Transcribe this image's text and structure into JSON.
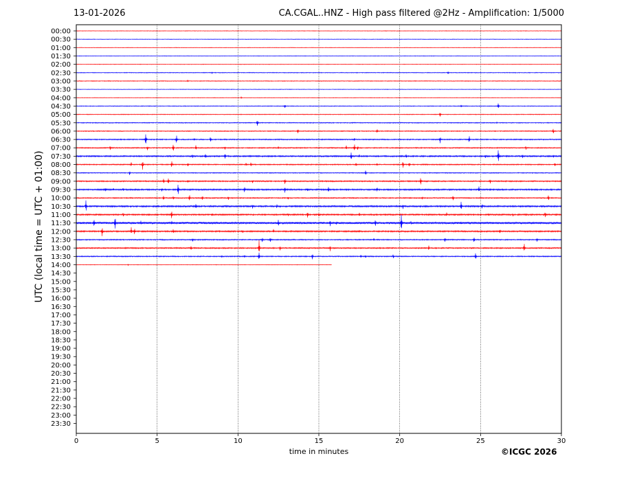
{
  "header": {
    "date": "13-01-2026",
    "title": "CA.CGAL..HNZ - High pass filtered @2Hz - Amplification: 1/5000"
  },
  "footer": {
    "copyright": "©ICGC 2026"
  },
  "colors": {
    "odd_trace": "#ff0000",
    "even_trace": "#0000ff",
    "axes": "#000000",
    "grid": "#000000"
  },
  "chart_data": {
    "type": "line",
    "title": "CA.CGAL..HNZ - High pass filtered @2Hz - Amplification: 1/5000",
    "xlabel": "time in minutes",
    "ylabel": "UTC (local time = UTC + 01:00)",
    "xlim": [
      0,
      30
    ],
    "xticks": [
      0,
      5,
      10,
      15,
      20,
      25,
      30
    ],
    "grid": "vertical dotted lines at 5, 10, 15, 20, 25",
    "row_labels": [
      "00:00",
      "00:30",
      "01:00",
      "01:30",
      "02:00",
      "02:30",
      "03:00",
      "03:30",
      "04:00",
      "04:30",
      "05:00",
      "05:30",
      "06:00",
      "06:30",
      "07:00",
      "07:30",
      "08:00",
      "08:30",
      "09:00",
      "09:30",
      "10:00",
      "10:30",
      "11:00",
      "11:30",
      "12:00",
      "12:30",
      "13:00",
      "13:30",
      "14:00",
      "14:30",
      "15:00",
      "15:30",
      "16:00",
      "16:30",
      "17:00",
      "17:30",
      "18:00",
      "18:30",
      "19:00",
      "19:30",
      "20:00",
      "20:30",
      "21:00",
      "21:30",
      "22:00",
      "22:30",
      "23:00",
      "23:30"
    ],
    "last_row_end_minute": 15.8,
    "series": [
      {
        "row": "00:00",
        "noise": 0.3,
        "events": []
      },
      {
        "row": "00:30",
        "noise": 0.3,
        "events": []
      },
      {
        "row": "01:00",
        "noise": 0.3,
        "events": []
      },
      {
        "row": "01:30",
        "noise": 0.3,
        "events": []
      },
      {
        "row": "02:00",
        "noise": 0.3,
        "events": []
      },
      {
        "row": "02:30",
        "noise": 0.4,
        "events": [
          [
            8.4,
            1.5
          ],
          [
            23.0,
            3
          ]
        ]
      },
      {
        "row": "03:00",
        "noise": 0.4,
        "events": [
          [
            6.9,
            2
          ]
        ]
      },
      {
        "row": "03:30",
        "noise": 0.3,
        "events": []
      },
      {
        "row": "04:00",
        "noise": 0.3,
        "events": [
          [
            10.2,
            1.5
          ]
        ]
      },
      {
        "row": "04:30",
        "noise": 0.4,
        "events": [
          [
            12.9,
            4
          ],
          [
            23.8,
            3
          ],
          [
            26.1,
            6
          ]
        ]
      },
      {
        "row": "05:00",
        "noise": 0.4,
        "events": [
          [
            22.5,
            5
          ]
        ]
      },
      {
        "row": "05:30",
        "noise": 0.5,
        "events": [
          [
            11.2,
            7
          ],
          [
            26.0,
            1.5
          ]
        ]
      },
      {
        "row": "06:00",
        "noise": 0.5,
        "events": [
          [
            13.7,
            5
          ],
          [
            18.6,
            4
          ],
          [
            29.5,
            5
          ]
        ]
      },
      {
        "row": "06:30",
        "noise": 0.6,
        "events": [
          [
            4.3,
            14
          ],
          [
            6.2,
            9
          ],
          [
            7.3,
            3
          ],
          [
            8.3,
            5
          ],
          [
            17.2,
            3
          ],
          [
            22.5,
            6
          ],
          [
            24.3,
            6
          ]
        ]
      },
      {
        "row": "07:00",
        "noise": 0.6,
        "events": [
          [
            2.1,
            4
          ],
          [
            4.4,
            4
          ],
          [
            6.0,
            8
          ],
          [
            7.4,
            5
          ],
          [
            9.2,
            4
          ],
          [
            12.5,
            3
          ],
          [
            16.7,
            4
          ],
          [
            17.2,
            7
          ],
          [
            17.4,
            5
          ],
          [
            27.8,
            4
          ]
        ]
      },
      {
        "row": "07:30",
        "noise": 0.8,
        "events": [
          [
            7.2,
            4
          ],
          [
            8.0,
            5
          ],
          [
            9.2,
            6
          ],
          [
            17.0,
            8
          ],
          [
            17.5,
            4
          ],
          [
            20.4,
            4
          ],
          [
            25.3,
            3
          ],
          [
            26.1,
            12
          ],
          [
            27.6,
            4
          ],
          [
            29.5,
            3
          ]
        ]
      },
      {
        "row": "08:00",
        "noise": 0.6,
        "events": [
          [
            3.4,
            4
          ],
          [
            4.1,
            8
          ],
          [
            5.9,
            6
          ],
          [
            6.9,
            4
          ],
          [
            10.5,
            3
          ],
          [
            10.8,
            4
          ],
          [
            17.3,
            4
          ],
          [
            18.6,
            3
          ],
          [
            20.2,
            6
          ],
          [
            20.6,
            5
          ],
          [
            29.6,
            4
          ]
        ]
      },
      {
        "row": "08:30",
        "noise": 0.5,
        "events": [
          [
            3.3,
            4
          ],
          [
            17.9,
            5
          ]
        ]
      },
      {
        "row": "09:00",
        "noise": 0.7,
        "events": [
          [
            5.4,
            6
          ],
          [
            5.7,
            6
          ],
          [
            6.9,
            3
          ],
          [
            10.9,
            3
          ],
          [
            12.9,
            7
          ],
          [
            21.3,
            7
          ],
          [
            25.6,
            4
          ]
        ]
      },
      {
        "row": "09:30",
        "noise": 0.8,
        "events": [
          [
            1.8,
            4
          ],
          [
            2.3,
            3
          ],
          [
            2.9,
            3
          ],
          [
            5.3,
            4
          ],
          [
            6.3,
            11
          ],
          [
            10.4,
            5
          ],
          [
            12.9,
            6
          ],
          [
            14.3,
            3
          ],
          [
            15.6,
            6
          ],
          [
            18.6,
            5
          ],
          [
            24.9,
            7
          ]
        ]
      },
      {
        "row": "10:00",
        "noise": 0.6,
        "events": [
          [
            5.4,
            5
          ],
          [
            6.0,
            4
          ],
          [
            7.0,
            6
          ],
          [
            7.8,
            5
          ],
          [
            9.4,
            4
          ],
          [
            13.1,
            3
          ],
          [
            21.4,
            3
          ],
          [
            23.3,
            5
          ],
          [
            29.2,
            6
          ]
        ]
      },
      {
        "row": "10:30",
        "noise": 0.9,
        "events": [
          [
            0.6,
            11
          ],
          [
            7.4,
            5
          ],
          [
            10.9,
            4
          ],
          [
            12.4,
            4
          ],
          [
            20.2,
            5
          ],
          [
            23.8,
            10
          ],
          [
            25.1,
            5
          ]
        ]
      },
      {
        "row": "11:00",
        "noise": 0.8,
        "events": [
          [
            2.9,
            4
          ],
          [
            5.9,
            9
          ],
          [
            8.4,
            4
          ],
          [
            13.1,
            4
          ],
          [
            14.3,
            6
          ],
          [
            15.0,
            4
          ],
          [
            17.5,
            4
          ],
          [
            22.9,
            4
          ],
          [
            25.5,
            3
          ],
          [
            27.0,
            3
          ],
          [
            29.0,
            6
          ]
        ]
      },
      {
        "row": "11:30",
        "noise": 1.2,
        "events": [
          [
            1.1,
            9
          ],
          [
            2.4,
            15
          ],
          [
            4.0,
            4
          ],
          [
            5.9,
            5
          ],
          [
            12.5,
            6
          ],
          [
            15.7,
            5
          ],
          [
            16.1,
            4
          ],
          [
            18.5,
            7
          ],
          [
            20.1,
            18
          ],
          [
            20.7,
            4
          ],
          [
            23.8,
            3
          ]
        ]
      },
      {
        "row": "12:00",
        "noise": 0.8,
        "events": [
          [
            1.6,
            9
          ],
          [
            3.4,
            7
          ],
          [
            3.6,
            6
          ],
          [
            6.0,
            4
          ],
          [
            10.3,
            3
          ],
          [
            12.2,
            4
          ],
          [
            17.5,
            3
          ],
          [
            26.2,
            4
          ]
        ]
      },
      {
        "row": "12:30",
        "noise": 0.6,
        "events": [
          [
            7.2,
            4
          ],
          [
            11.5,
            4
          ],
          [
            12.0,
            6
          ],
          [
            18.4,
            3
          ],
          [
            22.8,
            5
          ],
          [
            24.6,
            6
          ],
          [
            28.5,
            4
          ]
        ]
      },
      {
        "row": "13:00",
        "noise": 0.7,
        "events": [
          [
            7.1,
            5
          ],
          [
            11.3,
            14
          ],
          [
            12.6,
            4
          ],
          [
            15.7,
            5
          ],
          [
            21.8,
            5
          ],
          [
            27.7,
            9
          ]
        ]
      },
      {
        "row": "13:30",
        "noise": 0.6,
        "events": [
          [
            9.0,
            2
          ],
          [
            10.4,
            3
          ],
          [
            11.3,
            8
          ],
          [
            14.6,
            5
          ],
          [
            17.6,
            3
          ],
          [
            17.9,
            3
          ],
          [
            19.6,
            4
          ],
          [
            24.7,
            7
          ]
        ]
      },
      {
        "row": "14:00",
        "noise": 0.3,
        "events": [
          [
            3.2,
            1.5
          ]
        ]
      }
    ]
  }
}
